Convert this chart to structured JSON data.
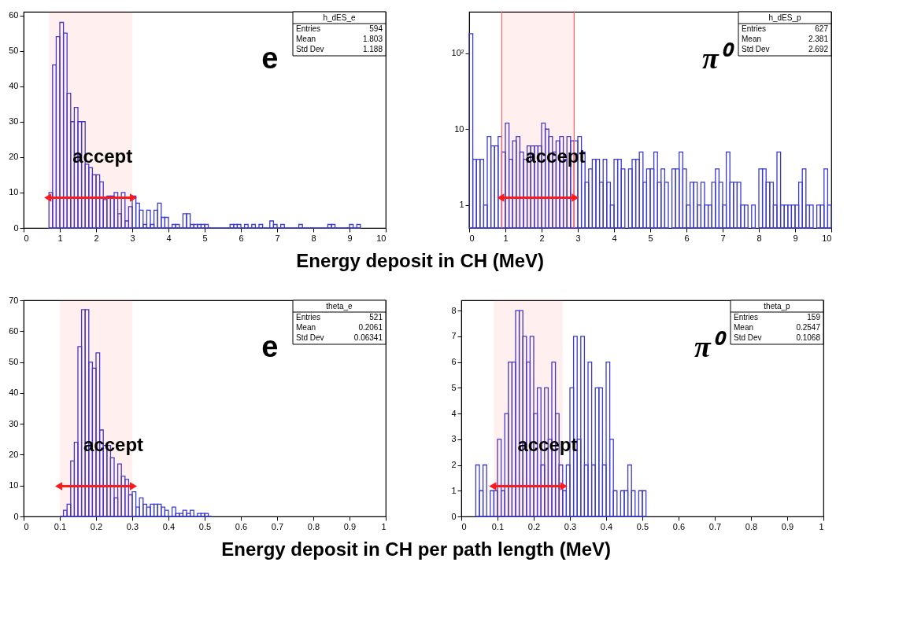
{
  "chart_data": [
    {
      "type": "histogram",
      "xlabel": "Energy deposit in CH  (MeV)",
      "color": "#3a3ad0",
      "xlim": [
        0,
        10
      ],
      "ylim": [
        0,
        61
      ],
      "xticks": [
        0,
        1,
        2,
        3,
        4,
        5,
        6,
        7,
        8,
        9,
        10
      ],
      "yticks": [
        0,
        10,
        20,
        30,
        40,
        50,
        60
      ],
      "bins": [
        0.7,
        0.8,
        0.9,
        1.0,
        1.1,
        1.2,
        1.3,
        1.4,
        1.5,
        1.6,
        1.7,
        1.8,
        1.9,
        2.0,
        2.1,
        2.2,
        2.3,
        2.4,
        2.5,
        2.6,
        2.7,
        2.8,
        2.9,
        3.0,
        3.1,
        3.2,
        3.3,
        3.4,
        3.5,
        3.6,
        3.7,
        3.8,
        3.9,
        4.0,
        4.1,
        4.2,
        4.3,
        4.4,
        4.5,
        4.6,
        4.7,
        4.8,
        4.9,
        5.0,
        5.1,
        5.2,
        5.3,
        5.4,
        5.5,
        5.6,
        5.7,
        5.8,
        5.9,
        6.0,
        6.1,
        6.2,
        6.3,
        6.4,
        6.5,
        6.6,
        6.7,
        6.8,
        6.9,
        7.0,
        7.1,
        7.2,
        7.3,
        7.4,
        7.5,
        7.6,
        7.7,
        7.8,
        7.9,
        8.0,
        8.1,
        8.2,
        8.3,
        8.4,
        8.5,
        8.6,
        8.7,
        8.8,
        8.9,
        9.0,
        9.1,
        9.2,
        9.3
      ],
      "values": [
        10,
        46,
        54,
        58,
        55,
        38,
        30,
        34,
        30,
        30,
        18,
        17,
        15,
        15,
        13,
        8,
        9,
        9,
        10,
        4,
        10,
        2,
        6,
        9,
        7,
        5,
        1,
        5,
        1,
        5,
        7,
        3,
        3,
        0,
        1,
        1,
        0,
        4,
        4,
        1,
        1,
        1,
        1,
        1,
        0,
        0,
        0,
        0,
        0,
        0,
        1,
        1,
        1,
        0,
        1,
        0,
        1,
        0,
        1,
        0,
        0,
        2,
        1,
        0,
        1,
        0,
        0,
        0,
        0,
        1,
        0,
        0,
        0,
        0,
        0,
        0,
        0,
        1,
        1,
        0,
        0,
        0,
        0,
        1,
        0,
        1
      ],
      "bands": [
        {
          "axis": "x",
          "from": 0.7,
          "to": 3.0,
          "label": "accept",
          "color": "#ff1a1a"
        }
      ],
      "annotations": [
        "e",
        "h_dES_e",
        "Entries",
        "594",
        "Mean",
        "1.803",
        "Std Dev",
        "1.188"
      ]
    },
    {
      "type": "histogram",
      "color": "#3a3ad0",
      "log": true,
      "xlim": [
        0,
        10
      ],
      "ylim": [
        0.5,
        350
      ],
      "xticks": [
        0,
        1,
        2,
        3,
        4,
        5,
        6,
        7,
        8,
        9,
        10
      ],
      "yticks": [
        1,
        10,
        {
          "value": 100,
          "label": "10²"
        }
      ],
      "bins": [
        0,
        0.1,
        0.2,
        0.3,
        0.4,
        0.5,
        0.6,
        0.7,
        0.8,
        0.9,
        1.0,
        1.1,
        1.2,
        1.3,
        1.4,
        1.5,
        1.6,
        1.7,
        1.8,
        1.9,
        2.0,
        2.1,
        2.2,
        2.3,
        2.4,
        2.5,
        2.6,
        2.7,
        2.8,
        2.9,
        3.0,
        3.1,
        3.2,
        3.3,
        3.4,
        3.5,
        3.6,
        3.7,
        3.8,
        3.9,
        4.0,
        4.1,
        4.2,
        4.3,
        4.4,
        4.5,
        4.6,
        4.7,
        4.8,
        4.9,
        5.0,
        5.1,
        5.2,
        5.3,
        5.4,
        5.5,
        5.6,
        5.7,
        5.8,
        5.9,
        6.0,
        6.1,
        6.2,
        6.3,
        6.4,
        6.5,
        6.6,
        6.7,
        6.8,
        6.9,
        7.0,
        7.1,
        7.2,
        7.3,
        7.4,
        7.5,
        7.6,
        7.7,
        7.8,
        7.9,
        8.0,
        8.1,
        8.2,
        8.3,
        8.4,
        8.5,
        8.6,
        8.7,
        8.8,
        8.9,
        9.0,
        9.1,
        9.2,
        9.3,
        9.4,
        9.5,
        9.6,
        9.7,
        9.8,
        9.9,
        10
      ],
      "values": [
        180,
        4,
        4,
        4,
        1,
        8,
        6,
        6,
        8,
        5,
        12,
        4,
        7,
        8,
        5,
        4,
        6,
        6,
        6,
        6,
        12,
        10,
        8,
        5,
        7,
        8,
        4,
        8,
        7,
        7,
        8,
        5,
        2,
        3,
        4,
        4,
        2,
        4,
        2,
        1,
        4,
        4,
        3,
        null,
        3,
        4,
        4,
        5,
        2,
        3,
        3,
        5,
        2,
        3,
        2,
        null,
        3,
        3,
        5,
        3,
        1,
        2,
        2,
        1,
        2,
        1,
        1,
        2,
        3,
        2,
        1,
        5,
        2,
        2,
        2,
        1,
        1,
        null,
        1,
        null,
        3,
        3,
        2,
        2,
        1,
        5,
        1,
        1,
        1,
        1,
        1,
        2,
        3,
        1,
        1,
        null,
        1,
        1,
        3,
        1
      ],
      "ref_lines": [
        {
          "axis": "x",
          "value": 0.9,
          "color": "#ff6666"
        },
        {
          "axis": "x",
          "value": 2.9,
          "color": "#ff6666"
        }
      ],
      "bands": [
        {
          "axis": "x",
          "from": 0.9,
          "to": 2.9,
          "label": "accept",
          "color": "#ff1a1a"
        }
      ],
      "annotations": [
        "π⁰",
        "h_dES_p",
        "Entries",
        "627",
        "Mean",
        "2.381",
        "Std Dev",
        "2.692"
      ]
    },
    {
      "type": "histogram",
      "xlabel": "Energy deposit in CH per path length   (MeV)",
      "color": "#3a3ad0",
      "xlim": [
        0,
        1
      ],
      "ylim": [
        0,
        70
      ],
      "xticks": [
        0,
        0.1,
        0.2,
        0.3,
        0.4,
        0.5,
        0.6,
        0.7,
        0.8,
        0.9,
        1
      ],
      "yticks": [
        0,
        10,
        20,
        30,
        40,
        50,
        60,
        70
      ],
      "bins": [
        0.1,
        0.11,
        0.12,
        0.13,
        0.14,
        0.15,
        0.16,
        0.17,
        0.18,
        0.19,
        0.2,
        0.21,
        0.22,
        0.23,
        0.24,
        0.25,
        0.26,
        0.27,
        0.28,
        0.29,
        0.3,
        0.31,
        0.32,
        0.33,
        0.34,
        0.35,
        0.36,
        0.37,
        0.38,
        0.39,
        0.4,
        0.41,
        0.42,
        0.43,
        0.44,
        0.45,
        0.46,
        0.47,
        0.48,
        0.49,
        0.5,
        0.51,
        0.52
      ],
      "values": [
        0,
        2,
        4,
        18,
        24,
        55,
        67,
        67,
        50,
        48,
        53,
        28,
        23,
        23,
        19,
        6,
        17,
        13,
        12,
        7,
        8,
        3,
        6,
        4,
        3,
        4,
        4,
        4,
        3,
        2,
        0,
        3,
        1,
        1,
        2,
        1,
        2,
        0,
        1,
        1,
        1,
        0
      ],
      "bands": [
        {
          "axis": "x",
          "from": 0.1,
          "to": 0.3,
          "label": "accept",
          "color": "#ff1a1a"
        }
      ],
      "annotations": [
        "e",
        "theta_e",
        "Entries",
        "521",
        "Mean",
        "0.2061",
        "Std Dev",
        "0.06341"
      ]
    },
    {
      "type": "histogram",
      "color": "#3a3ad0",
      "xlim": [
        0,
        1
      ],
      "ylim": [
        0,
        8.4
      ],
      "xticks": [
        0,
        0.1,
        0.2,
        0.3,
        0.4,
        0.5,
        0.6,
        0.7,
        0.8,
        0.9,
        1
      ],
      "yticks": [
        0,
        1,
        2,
        3,
        4,
        5,
        6,
        7,
        8
      ],
      "bins": [
        0.04,
        0.05,
        0.06,
        0.07,
        0.08,
        0.09,
        0.1,
        0.11,
        0.12,
        0.13,
        0.14,
        0.15,
        0.16,
        0.17,
        0.18,
        0.19,
        0.2,
        0.21,
        0.22,
        0.23,
        0.24,
        0.25,
        0.26,
        0.27,
        0.28,
        0.29,
        0.3,
        0.31,
        0.32,
        0.33,
        0.34,
        0.35,
        0.36,
        0.37,
        0.38,
        0.39,
        0.4,
        0.41,
        0.42,
        0.43,
        0.44,
        0.45,
        0.46,
        0.47,
        0.48,
        0.49,
        0.5,
        0.51
      ],
      "values": [
        2,
        1,
        2,
        0,
        1,
        1,
        3,
        1,
        4,
        6,
        6,
        8,
        8,
        7,
        6,
        7,
        4,
        5,
        2,
        5,
        3,
        6,
        4,
        2,
        1,
        2,
        5,
        7,
        3,
        7,
        2,
        6,
        2,
        5,
        5,
        2,
        6,
        3,
        1,
        0,
        1,
        1,
        2,
        1,
        0,
        1,
        1
      ],
      "bands": [
        {
          "axis": "x",
          "from": 0.09,
          "to": 0.28,
          "label": "accept",
          "color": "#ff1a1a"
        }
      ],
      "annotations": [
        "π⁰",
        "theta_p",
        "Entries",
        "159",
        "Mean",
        "0.2547",
        "Std Dev",
        "0.1068"
      ]
    }
  ]
}
